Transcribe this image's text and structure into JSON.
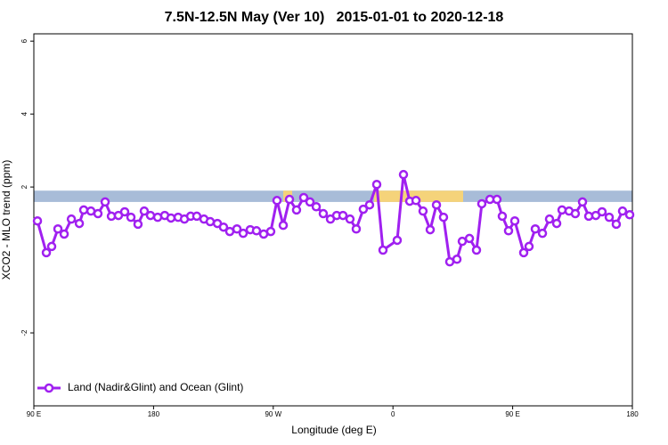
{
  "chart_data": {
    "type": "line",
    "title": "7.5N-12.5N May (Ver 10)   2015-01-01 to 2020-12-18",
    "xlabel": "Longitude (deg E)",
    "ylabel": "XCO2 - MLO trend (ppm)",
    "xlim": [
      90,
      540
    ],
    "ylim": [
      -4,
      6.2
    ],
    "xticks": [
      {
        "value": 90,
        "label": "90 E"
      },
      180,
      {
        "value": 270,
        "label": "90 W"
      },
      {
        "value": 360,
        "label": "0"
      },
      {
        "value": 450,
        "label": "90 E"
      },
      {
        "value": 540,
        "label": "180"
      }
    ],
    "yticks": [
      6,
      4,
      2,
      -2
    ],
    "band": [
      1.59,
      1.9
    ],
    "band_color": "#a8bcd8",
    "legend": "bottom-left",
    "x": [
      92.7,
      99.4,
      103.4,
      108.1,
      112.8,
      118.2,
      124.2,
      127.5,
      132.9,
      138.2,
      143.6,
      148.3,
      153.6,
      158.3,
      163,
      168.3,
      173,
      177.7,
      183.1,
      188.4,
      193.1,
      198.5,
      203.2,
      207.9,
      212.5,
      217.9,
      222.6,
      228,
      232.6,
      237.3,
      242.7,
      247.4,
      252.7,
      257.4,
      262.8,
      268.1,
      272.8,
      277.5,
      282.2,
      287.5,
      292.9,
      297.6,
      302.3,
      307.6,
      313,
      317.7,
      322.4,
      327.7,
      332.4,
      337.7,
      342.4,
      347.8,
      352.5,
      363.2,
      367.9,
      372.6,
      377.3,
      382.6,
      388,
      392.7,
      398,
      402.7,
      408.1,
      412.1,
      417.5,
      422.8,
      426.8,
      432.9,
      438.2,
      442.2,
      446.9,
      451.6,
      458.3,
      462.3,
      467,
      472.4,
      477.7,
      483.1,
      487.1,
      492.4,
      497.1,
      502.5,
      507.2,
      512.5,
      517.2,
      522.6,
      527.9,
      532.6,
      538
    ],
    "series": [
      {
        "name": "Land (Nadir&Glint) and Ocean (Glint)",
        "color": "#a020f0",
        "values": [
          1.07,
          0.2,
          0.37,
          0.85,
          0.71,
          1.12,
          1.0,
          1.37,
          1.34,
          1.27,
          1.59,
          1.2,
          1.22,
          1.32,
          1.17,
          0.98,
          1.34,
          1.22,
          1.17,
          1.22,
          1.15,
          1.17,
          1.12,
          1.2,
          1.2,
          1.12,
          1.05,
          1.0,
          0.9,
          0.78,
          0.85,
          0.73,
          0.83,
          0.8,
          0.71,
          0.78,
          1.63,
          0.95,
          1.66,
          1.37,
          1.71,
          1.59,
          1.46,
          1.27,
          1.12,
          1.22,
          1.22,
          1.12,
          0.85,
          1.39,
          1.51,
          2.07,
          0.27,
          0.54,
          2.34,
          1.61,
          1.63,
          1.34,
          0.83,
          1.51,
          1.17,
          -0.05,
          0.02,
          0.51,
          0.59,
          0.27,
          1.54,
          1.66,
          1.66,
          1.2,
          0.8,
          1.07,
          0.2,
          0.37,
          0.85,
          0.73,
          1.12,
          1.0,
          1.37,
          1.34,
          1.27,
          1.59,
          1.2,
          1.22,
          1.32,
          1.17,
          0.98,
          1.34,
          1.24
        ]
      }
    ]
  }
}
